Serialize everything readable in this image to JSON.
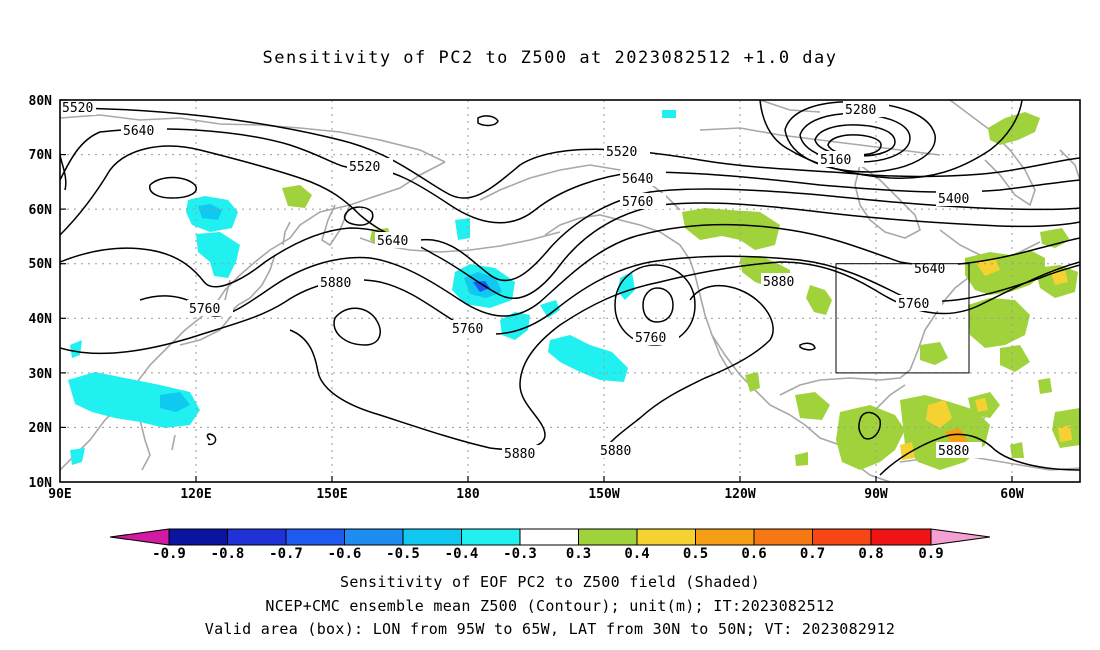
{
  "title": "Sensitivity of PC2 to Z500 at 2023082512 +1.0 day",
  "map": {
    "lat_labels": [
      "80N",
      "70N",
      "60N",
      "50N",
      "40N",
      "30N",
      "20N",
      "10N"
    ],
    "lon_labels": [
      "90E",
      "120E",
      "150E",
      "180",
      "150W",
      "120W",
      "90W",
      "60W"
    ],
    "contour_labels": [
      "5520",
      "5640",
      "5520",
      "5640",
      "5880",
      "5760",
      "5760",
      "5520",
      "5640",
      "5760",
      "5760",
      "5880",
      "5280",
      "5160",
      "5400",
      "5640",
      "5760",
      "5880",
      "5880",
      "5880"
    ],
    "valid_box": {
      "lon_range": "95W to 65W",
      "lat_range": "30N to 50N"
    }
  },
  "colorbar": {
    "labels": [
      "-0.9",
      "-0.8",
      "-0.7",
      "-0.6",
      "-0.5",
      "-0.4",
      "-0.3",
      "0.3",
      "0.4",
      "0.5",
      "0.6",
      "0.7",
      "0.8",
      "0.9"
    ],
    "colors": [
      "#d21aa3",
      "#0a14a0",
      "#1e32d6",
      "#1e5af0",
      "#1e8cf0",
      "#10c8f0",
      "#20f0f0",
      "#ffffff",
      "#a0d23c",
      "#f5d232",
      "#f5a014",
      "#f57814",
      "#f54614",
      "#f01414",
      "#f5a0d2"
    ]
  },
  "captions": [
    "Sensitivity of EOF PC2 to Z500 field (Shaded)",
    "NCEP+CMC ensemble mean Z500 (Contour); unit(m); IT:2023082512",
    "Valid area (box): LON from 95W to 65W, LAT from 30N to 50N; VT: 2023082912"
  ]
}
